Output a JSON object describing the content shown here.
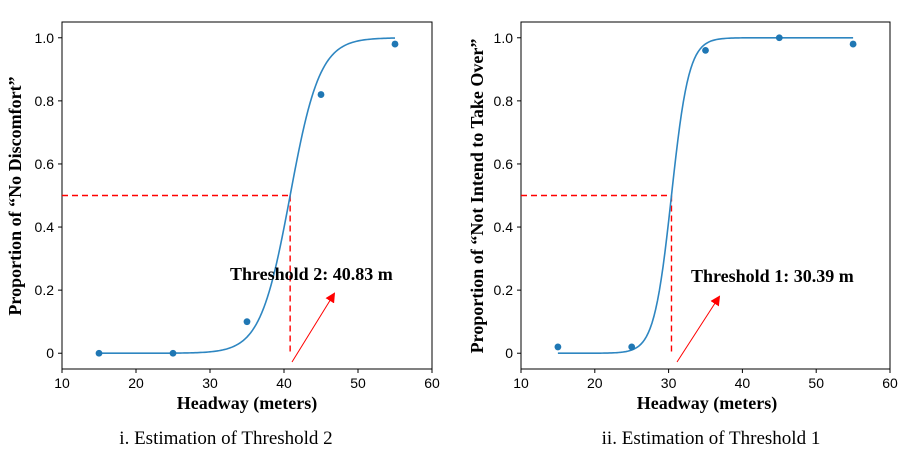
{
  "chart_data": [
    {
      "type": "scatter",
      "caption": "i. Estimation of Threshold 2",
      "xlabel": "Headway (meters)",
      "ylabel": "Proportion of “No Discomfort”",
      "xlim": [
        10,
        60
      ],
      "ylim": [
        -0.05,
        1.05
      ],
      "xticks": [
        "10",
        "20",
        "30",
        "40",
        "50",
        "60"
      ],
      "yticks": [
        {
          "value": 0,
          "label": "0"
        },
        {
          "value": 0.2,
          "label": "0.2"
        },
        {
          "value": 0.4,
          "label": "0.4"
        },
        {
          "value": 0.6,
          "label": "0.6"
        },
        {
          "value": 0.8,
          "label": "0.8"
        },
        {
          "value": 1.0,
          "label": "1.0"
        }
      ],
      "points": {
        "x": [
          15,
          25,
          35,
          45,
          55
        ],
        "y": [
          0.0,
          0.0,
          0.1,
          0.82,
          0.98
        ]
      },
      "fit_curve": {
        "center": 40.83,
        "x_range": [
          15,
          55
        ]
      },
      "threshold": {
        "x": 40.83,
        "y": 0.5,
        "label": "Threshold 2: 40.83 m"
      },
      "colors": {
        "points": "#1f77b4",
        "curve": "#2e86c1",
        "threshold": "#ff0000"
      }
    },
    {
      "type": "scatter",
      "caption": "ii. Estimation of Threshold 1",
      "xlabel": "Headway (meters)",
      "ylabel": "Proportion of “Not Intend to Take Over”",
      "xlim": [
        10,
        60
      ],
      "ylim": [
        -0.05,
        1.05
      ],
      "xticks": [
        "10",
        "20",
        "30",
        "40",
        "50",
        "60"
      ],
      "yticks": [
        {
          "value": 0,
          "label": "0"
        },
        {
          "value": 0.2,
          "label": "0.2"
        },
        {
          "value": 0.4,
          "label": "0.4"
        },
        {
          "value": 0.6,
          "label": "0.6"
        },
        {
          "value": 0.8,
          "label": "0.8"
        },
        {
          "value": 1.0,
          "label": "1.0"
        }
      ],
      "points": {
        "x": [
          15,
          25,
          35,
          45,
          55
        ],
        "y": [
          0.02,
          0.02,
          0.96,
          1.0,
          0.98
        ]
      },
      "fit_curve": {
        "center": 30.39,
        "x_range": [
          15,
          55
        ]
      },
      "threshold": {
        "x": 30.39,
        "y": 0.5,
        "label": "Threshold 1: 30.39 m"
      },
      "colors": {
        "points": "#1f77b4",
        "curve": "#2e86c1",
        "threshold": "#ff0000"
      }
    }
  ]
}
